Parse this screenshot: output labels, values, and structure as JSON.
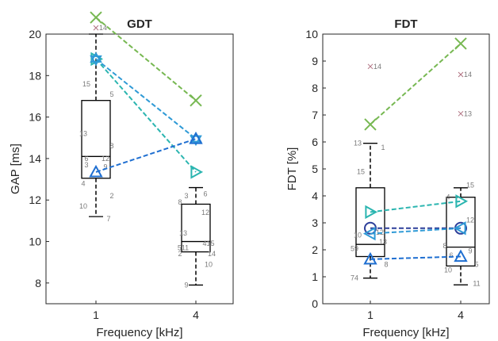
{
  "chart_data": [
    {
      "type": "box",
      "title": "GDT",
      "xlabel": "Frequency [kHz]",
      "ylabel": "GAP [ms]",
      "categories": [
        "1",
        "4"
      ],
      "ylim": [
        7.0,
        20.0
      ],
      "yticks": [
        "8",
        "10",
        "12",
        "14",
        "16",
        "18",
        "20"
      ],
      "boxes": [
        {
          "q1": 13.05,
          "median": 14.1,
          "q3": 16.8,
          "whisker_low": 11.2,
          "whisker_high": 20.0
        },
        {
          "q1": 9.5,
          "median": 10.0,
          "q3": 11.8,
          "whisker_low": 7.9,
          "whisker_high": 12.6
        }
      ],
      "outliers": [
        {
          "x": "1",
          "y": 20.3,
          "label": "14"
        }
      ],
      "point_labels": [
        {
          "x": "1",
          "y": 17.6,
          "text": "15"
        },
        {
          "x": "1",
          "y": 17.1,
          "text": "5"
        },
        {
          "x": "1",
          "y": 15.2,
          "text": "13"
        },
        {
          "x": "1",
          "y": 14.6,
          "text": "8"
        },
        {
          "x": "1",
          "y": 14.0,
          "text": "6"
        },
        {
          "x": "1",
          "y": 14.0,
          "text": "12"
        },
        {
          "x": "1",
          "y": 13.7,
          "text": "3"
        },
        {
          "x": "1",
          "y": 13.6,
          "text": "9"
        },
        {
          "x": "1",
          "y": 12.8,
          "text": "4"
        },
        {
          "x": "1",
          "y": 12.2,
          "text": "2"
        },
        {
          "x": "1",
          "y": 11.7,
          "text": "10"
        },
        {
          "x": "1",
          "y": 11.1,
          "text": "7"
        },
        {
          "x": "4",
          "y": 12.2,
          "text": "3"
        },
        {
          "x": "4",
          "y": 12.3,
          "text": "6"
        },
        {
          "x": "4",
          "y": 11.9,
          "text": "8"
        },
        {
          "x": "4",
          "y": 11.4,
          "text": "12"
        },
        {
          "x": "4",
          "y": 10.4,
          "text": "13"
        },
        {
          "x": "4",
          "y": 9.9,
          "text": "415"
        },
        {
          "x": "4",
          "y": 9.7,
          "text": "511"
        },
        {
          "x": "4",
          "y": 9.4,
          "text": "14"
        },
        {
          "x": "4",
          "y": 9.4,
          "text": "2"
        },
        {
          "x": "4",
          "y": 8.9,
          "text": "10"
        },
        {
          "x": "4",
          "y": 7.9,
          "text": "9"
        }
      ],
      "series": [
        {
          "marker": "x",
          "color": "#77b852",
          "values": [
            20.8,
            16.8
          ]
        },
        {
          "marker": "triangle-right",
          "color": "#2bb5b0",
          "values": [
            18.8,
            13.35
          ]
        },
        {
          "marker": "hexagram",
          "color": "#2f9ad6",
          "values": [
            18.8,
            14.95
          ]
        },
        {
          "marker": "triangle-up",
          "color": "#1f6fd1",
          "values": [
            13.35,
            14.95
          ]
        }
      ]
    },
    {
      "type": "box",
      "title": "FDT",
      "xlabel": "Frequency [kHz]",
      "ylabel": "FDT [%]",
      "categories": [
        "1",
        "4"
      ],
      "ylim": [
        0,
        10
      ],
      "yticks": [
        "0",
        "1",
        "2",
        "3",
        "4",
        "5",
        "6",
        "7",
        "8",
        "9",
        "10"
      ],
      "boxes": [
        {
          "q1": 1.75,
          "median": 2.2,
          "q3": 4.3,
          "whisker_low": 0.95,
          "whisker_high": 5.95
        },
        {
          "q1": 1.4,
          "median": 2.1,
          "q3": 3.95,
          "whisker_low": 0.7,
          "whisker_high": 4.3
        }
      ],
      "outliers": [
        {
          "x": "1",
          "y": 8.8,
          "label": "14"
        },
        {
          "x": "4",
          "y": 8.5,
          "label": "14"
        },
        {
          "x": "4",
          "y": 7.05,
          "label": "13"
        }
      ],
      "point_labels": [
        {
          "x": "1",
          "y": 5.95,
          "text": "13"
        },
        {
          "x": "1",
          "y": 5.8,
          "text": "1"
        },
        {
          "x": "1",
          "y": 4.9,
          "text": "15"
        },
        {
          "x": "1",
          "y": 2.65,
          "text": "12"
        },
        {
          "x": "1",
          "y": 2.55,
          "text": "10"
        },
        {
          "x": "1",
          "y": 2.3,
          "text": "13"
        },
        {
          "x": "1",
          "y": 2.05,
          "text": "59"
        },
        {
          "x": "1",
          "y": 1.45,
          "text": "8"
        },
        {
          "x": "1",
          "y": 0.95,
          "text": "74"
        },
        {
          "x": "4",
          "y": 4.4,
          "text": "15"
        },
        {
          "x": "4",
          "y": 3.95,
          "text": "4"
        },
        {
          "x": "4",
          "y": 3.1,
          "text": "12"
        },
        {
          "x": "4",
          "y": 2.15,
          "text": "8"
        },
        {
          "x": "4",
          "y": 1.95,
          "text": "9"
        },
        {
          "x": "4",
          "y": 1.8,
          "text": "6"
        },
        {
          "x": "4",
          "y": 1.45,
          "text": "5"
        },
        {
          "x": "4",
          "y": 1.25,
          "text": "10"
        },
        {
          "x": "4",
          "y": 0.75,
          "text": "11"
        }
      ],
      "series": [
        {
          "marker": "x",
          "color": "#77b852",
          "values": [
            6.65,
            9.65
          ]
        },
        {
          "marker": "triangle-right",
          "color": "#2bb5b0",
          "values": [
            3.4,
            3.8
          ]
        },
        {
          "marker": "circle",
          "color": "#2d3f9a",
          "values": [
            2.8,
            2.8
          ]
        },
        {
          "marker": "triangle-left",
          "color": "#2f9ad6",
          "values": [
            2.6,
            2.8
          ]
        },
        {
          "marker": "triangle-up",
          "color": "#1f6fd1",
          "values": [
            1.65,
            1.75
          ]
        }
      ]
    }
  ]
}
